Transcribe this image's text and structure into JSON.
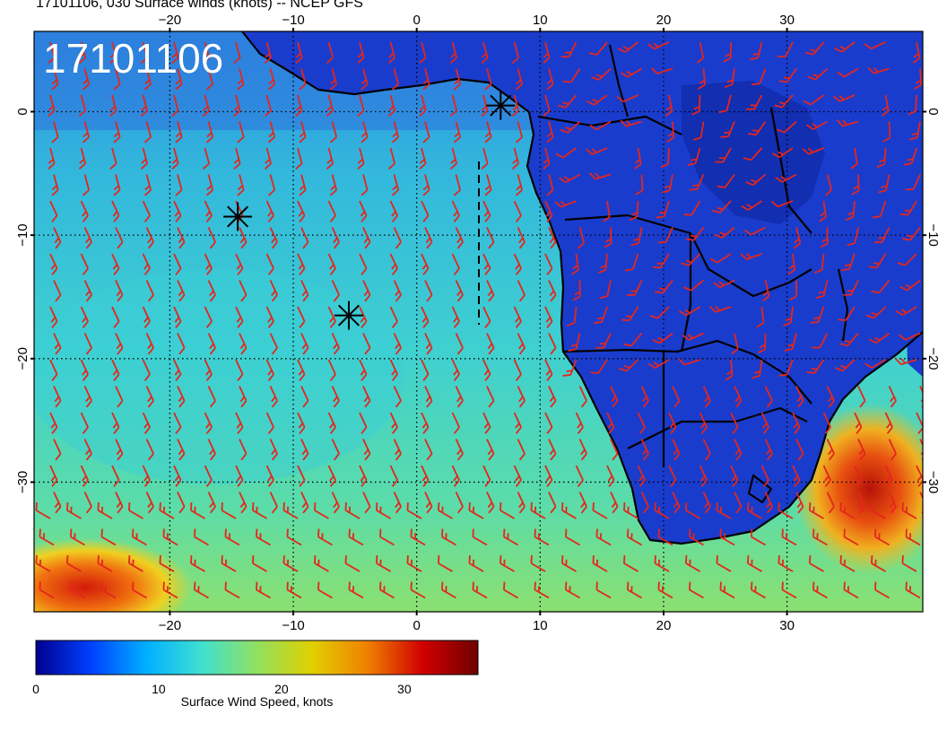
{
  "header": {
    "title": "17101106, 030 Surface winds (knots) -- NCEP GFS"
  },
  "map": {
    "tag": "17101106",
    "lon_ticks": [
      "−20",
      "−10",
      "0",
      "10",
      "20",
      "30"
    ],
    "lat_ticks": [
      "0",
      "−10",
      "−20",
      "−30"
    ],
    "lon_range": [
      -31,
      41
    ],
    "lat_range": [
      6.5,
      -40.5
    ],
    "graticule_lons": [
      -20,
      -10,
      0,
      10,
      20,
      30
    ],
    "graticule_lats": [
      0,
      -10,
      -20,
      -30
    ],
    "markers": [
      {
        "name": "storm-marker-1",
        "lon": 6.8,
        "lat": 0.5
      },
      {
        "name": "storm-marker-2",
        "lon": -14.5,
        "lat": -8.5
      },
      {
        "name": "storm-marker-3",
        "lon": -5.5,
        "lat": -16.5
      }
    ],
    "colors": {
      "ocean_low": "#2c9fe6",
      "ocean_mid": "#35c8d8",
      "land": "#1836c9",
      "barb": "#e4261c",
      "marker": "#000000",
      "frame": "#000000"
    }
  },
  "colorbar": {
    "ticks": [
      "0",
      "10",
      "20",
      "30"
    ],
    "tick_values": [
      0,
      10,
      20,
      30
    ],
    "range": [
      0,
      36
    ],
    "label": "Surface Wind Speed, knots",
    "stops": [
      "#00008f",
      "#0040ff",
      "#00b0ff",
      "#40e0d0",
      "#90e060",
      "#e0d000",
      "#f08000",
      "#d00000",
      "#700000"
    ]
  }
}
